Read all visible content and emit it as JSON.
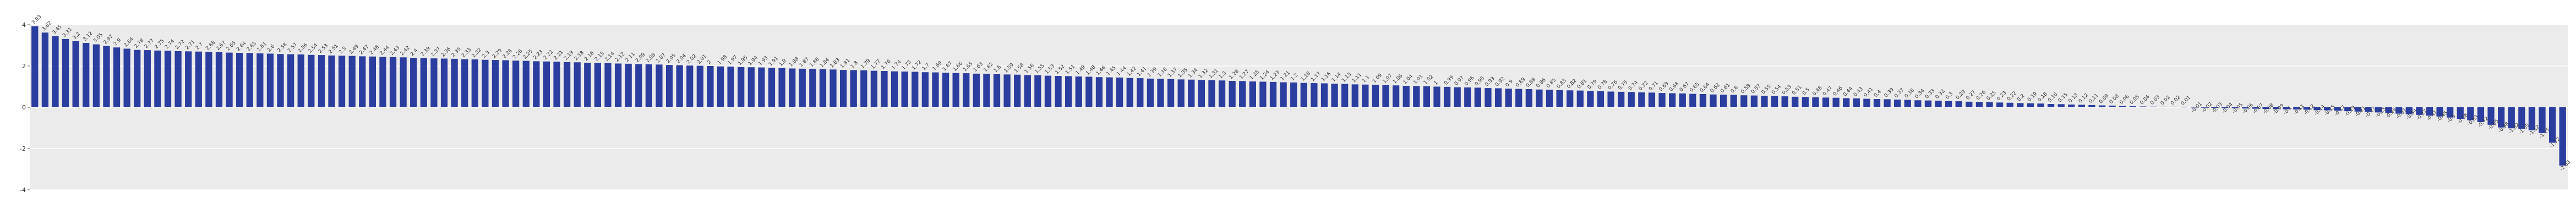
{
  "chart_data": {
    "type": "bar",
    "color": "#2b3d9e",
    "grid": true,
    "background": "#ebebeb",
    "ylim": [
      -4,
      4
    ],
    "yticks": [
      -4,
      -2,
      0,
      2,
      4
    ],
    "values": [
      3.93,
      3.62,
      3.45,
      3.31,
      3.2,
      3.12,
      3.05,
      2.97,
      2.9,
      2.84,
      2.78,
      2.77,
      2.75,
      2.74,
      2.72,
      2.71,
      2.7,
      2.68,
      2.67,
      2.65,
      2.64,
      2.63,
      2.61,
      2.6,
      2.58,
      2.57,
      2.56,
      2.54,
      2.53,
      2.51,
      2.5,
      2.49,
      2.47,
      2.46,
      2.44,
      2.43,
      2.42,
      2.4,
      2.39,
      2.37,
      2.36,
      2.35,
      2.33,
      2.32,
      2.3,
      2.29,
      2.28,
      2.26,
      2.25,
      2.23,
      2.22,
      2.21,
      2.19,
      2.18,
      2.16,
      2.15,
      2.14,
      2.12,
      2.11,
      2.09,
      2.08,
      2.07,
      2.05,
      2.04,
      2.02,
      2.01,
      2,
      1.98,
      1.97,
      1.95,
      1.94,
      1.93,
      1.91,
      1.9,
      1.88,
      1.87,
      1.86,
      1.84,
      1.83,
      1.81,
      1.8,
      1.79,
      1.77,
      1.76,
      1.74,
      1.73,
      1.72,
      1.7,
      1.69,
      1.67,
      1.66,
      1.65,
      1.63,
      1.62,
      1.6,
      1.59,
      1.58,
      1.56,
      1.55,
      1.53,
      1.52,
      1.51,
      1.49,
      1.48,
      1.46,
      1.45,
      1.44,
      1.42,
      1.41,
      1.39,
      1.38,
      1.37,
      1.35,
      1.34,
      1.32,
      1.31,
      1.3,
      1.28,
      1.27,
      1.25,
      1.24,
      1.23,
      1.21,
      1.2,
      1.18,
      1.17,
      1.16,
      1.14,
      1.13,
      1.11,
      1.1,
      1.09,
      1.07,
      1.06,
      1.04,
      1.03,
      1.02,
      1,
      0.99,
      0.97,
      0.96,
      0.95,
      0.93,
      0.92,
      0.9,
      0.89,
      0.88,
      0.86,
      0.85,
      0.83,
      0.82,
      0.81,
      0.79,
      0.78,
      0.76,
      0.75,
      0.74,
      0.72,
      0.71,
      0.69,
      0.68,
      0.67,
      0.65,
      0.64,
      0.62,
      0.61,
      0.6,
      0.58,
      0.57,
      0.55,
      0.54,
      0.53,
      0.51,
      0.5,
      0.48,
      0.47,
      0.46,
      0.44,
      0.43,
      0.41,
      0.4,
      0.39,
      0.37,
      0.36,
      0.34,
      0.33,
      0.32,
      0.3,
      0.29,
      0.27,
      0.26,
      0.25,
      0.23,
      0.22,
      0.2,
      0.19,
      0.18,
      0.16,
      0.15,
      0.13,
      0.12,
      0.11,
      0.09,
      0.08,
      0.06,
      0.05,
      0.04,
      0.03,
      0.02,
      0.02,
      0.01,
      -0.01,
      -0.02,
      -0.03,
      -0.04,
      -0.05,
      -0.06,
      -0.07,
      -0.08,
      -0.09,
      -0.1,
      -0.11,
      -0.12,
      -0.14,
      -0.15,
      -0.17,
      -0.19,
      -0.21,
      -0.23,
      -0.25,
      -0.28,
      -0.31,
      -0.34,
      -0.37,
      -0.41,
      -0.45,
      -0.5,
      -0.56,
      -0.63,
      -0.72,
      -0.85,
      -0.98,
      -1.02,
      -1.05,
      -1.12,
      -1.25,
      -1.72,
      -2.83
    ]
  }
}
